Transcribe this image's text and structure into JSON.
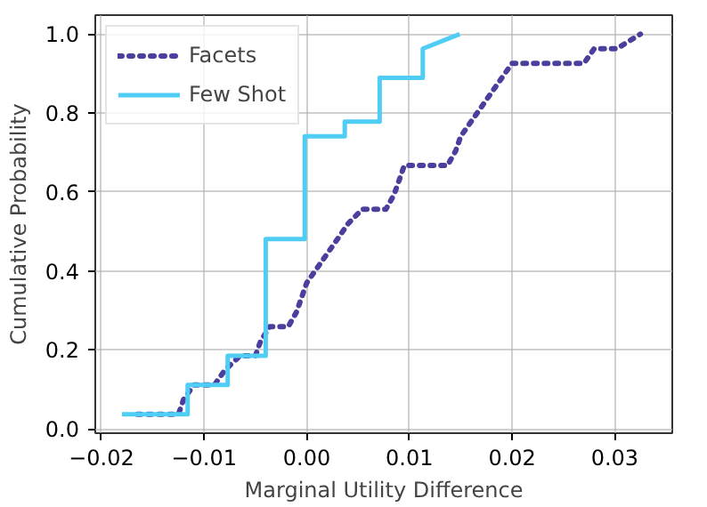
{
  "chart_data": {
    "type": "line",
    "xlabel": "Marginal Utility Difference",
    "ylabel": "Cumulative Probability",
    "xlim": [
      -0.0206,
      0.0356
    ],
    "ylim": [
      -0.011,
      1.048
    ],
    "xticks": [
      {
        "value": -0.02,
        "label": "−0.02"
      },
      {
        "value": -0.01,
        "label": "−0.01"
      },
      {
        "value": 0,
        "label": "0.00"
      },
      {
        "value": 0.01,
        "label": "0.01"
      },
      {
        "value": 0.02,
        "label": "0.02"
      },
      {
        "value": 0.03,
        "label": "0.03"
      }
    ],
    "yticks": [
      {
        "value": 0,
        "label": "0.0"
      },
      {
        "value": 0.2,
        "label": "0.2"
      },
      {
        "value": 0.4,
        "label": "0.4"
      },
      {
        "value": 0.6,
        "label": "0.6"
      },
      {
        "value": 0.8,
        "label": "0.8"
      },
      {
        "value": 1.0,
        "label": "1.0"
      }
    ],
    "grid": true,
    "legend": "top left",
    "series": [
      {
        "name": "Facets",
        "color": "#4b3f9e",
        "line_style": "dotted",
        "x": [
          -0.0165,
          -0.0125,
          -0.012,
          -0.011,
          -0.009,
          -0.008,
          -0.0065,
          -0.005,
          -0.0045,
          -0.0036,
          -0.0018,
          -0.001,
          0.0,
          0.001,
          0.002,
          0.003,
          0.004,
          0.0054,
          0.0077,
          0.0085,
          0.0095,
          0.0137,
          0.0145,
          0.015,
          0.016,
          0.017,
          0.018,
          0.019,
          0.02,
          0.027,
          0.028,
          0.0302,
          0.0325
        ],
        "values": [
          0.037,
          0.037,
          0.074,
          0.111,
          0.111,
          0.148,
          0.185,
          0.185,
          0.222,
          0.259,
          0.259,
          0.296,
          0.37,
          0.407,
          0.444,
          0.481,
          0.519,
          0.556,
          0.556,
          0.593,
          0.667,
          0.667,
          0.704,
          0.741,
          0.778,
          0.815,
          0.852,
          0.889,
          0.926,
          0.926,
          0.963,
          0.963,
          1.0
        ]
      },
      {
        "name": "Few Shot",
        "color": "#4fcdf4",
        "line_style": "solid",
        "x": [
          -0.018,
          -0.0116,
          -0.0116,
          -0.0077,
          -0.0077,
          -0.004,
          -0.004,
          -0.0002,
          -0.0002,
          0.0037,
          0.0037,
          0.0071,
          0.0071,
          0.0113,
          0.0113,
          0.0149
        ],
        "values": [
          0.037,
          0.037,
          0.111,
          0.111,
          0.185,
          0.185,
          0.481,
          0.481,
          0.741,
          0.741,
          0.778,
          0.778,
          0.889,
          0.889,
          0.963,
          1.0
        ]
      }
    ]
  }
}
